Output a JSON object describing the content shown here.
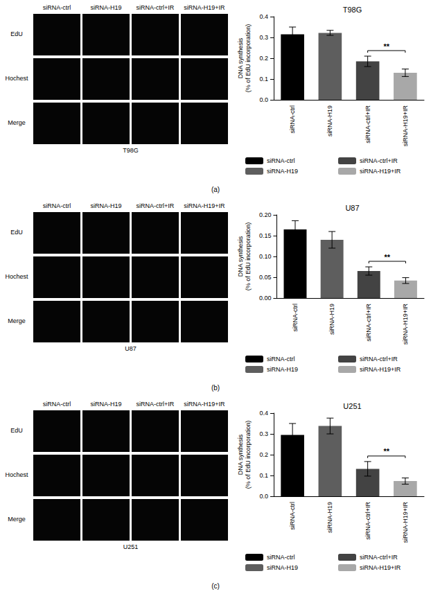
{
  "chart_data": [
    {
      "type": "bar",
      "title": "T98G",
      "ylabel": "DNA synthesis\n(% of EdU incorporation)",
      "categories": [
        "siRNA-ctrl",
        "siRNA-H19",
        "siRNA-ctrl+IR",
        "siRNA-H19+IR"
      ],
      "values": [
        0.315,
        0.322,
        0.185,
        0.13
      ],
      "errors": [
        0.035,
        0.012,
        0.025,
        0.018
      ],
      "colors": [
        "#000000",
        "#5e5e5e",
        "#434343",
        "#a8a8a8"
      ],
      "ylim": [
        0,
        0.4
      ],
      "yticks": [
        {
          "value": 0,
          "label": "0.0"
        },
        0.1,
        0.2,
        0.3,
        0.4
      ],
      "grid": false,
      "legend": "bottom",
      "annotations": [
        {
          "text": "**",
          "from": "siRNA-ctrl+IR",
          "to": "siRNA-H19+IR"
        }
      ]
    },
    {
      "type": "bar",
      "title": "U87",
      "ylabel": "DNA synthesis\n(% of EdU incorporation)",
      "categories": [
        "siRNA-ctrl",
        "siRNA-H19",
        "siRNA-ctrl+IR",
        "siRNA-H19+IR"
      ],
      "values": [
        0.165,
        0.14,
        0.065,
        0.042
      ],
      "errors": [
        0.021,
        0.02,
        0.01,
        0.007
      ],
      "colors": [
        "#000000",
        "#5e5e5e",
        "#434343",
        "#a8a8a8"
      ],
      "ylim": [
        0,
        0.2
      ],
      "yticks": [
        {
          "value": 0,
          "label": "0.00"
        },
        {
          "value": 0.05,
          "label": "0.05"
        },
        {
          "value": 0.1,
          "label": "0.10"
        },
        {
          "value": 0.15,
          "label": "0.15"
        },
        {
          "value": 0.2,
          "label": "0.20"
        }
      ],
      "grid": false,
      "legend": "bottom",
      "annotations": [
        {
          "text": "**",
          "from": "siRNA-ctrl+IR",
          "to": "siRNA-H19+IR"
        }
      ]
    },
    {
      "type": "bar",
      "title": "U251",
      "ylabel": "DNA synthesis\n(% of EdU incorporation)",
      "categories": [
        "siRNA-ctrl",
        "siRNA-H19",
        "siRNA-ctrl+IR",
        "siRNA-H19+IR"
      ],
      "values": [
        0.295,
        0.338,
        0.132,
        0.073
      ],
      "errors": [
        0.055,
        0.038,
        0.035,
        0.015
      ],
      "colors": [
        "#000000",
        "#5e5e5e",
        "#434343",
        "#a8a8a8"
      ],
      "ylim": [
        0,
        0.4
      ],
      "yticks": [
        {
          "value": 0,
          "label": "0.0"
        },
        0.1,
        0.2,
        0.3,
        0.4
      ],
      "grid": false,
      "legend": "bottom",
      "annotations": [
        {
          "text": "**",
          "from": "siRNA-ctrl+IR",
          "to": "siRNA-H19+IR"
        }
      ]
    }
  ],
  "image_panels": [
    {
      "label": "(a)",
      "cell_line": "T98G",
      "columns": [
        "siRNA-ctrl",
        "siRNA-H19",
        "siRNA-ctrl+IR",
        "siRNA-H19+IR"
      ],
      "rows": [
        "EdU",
        "Hochest",
        "Merge"
      ]
    },
    {
      "label": "(b)",
      "cell_line": "U87",
      "columns": [
        "siRNA-ctrl",
        "siRNA-H19",
        "siRNA-ctrl+IR",
        "siRNA-H19+IR"
      ],
      "rows": [
        "EdU",
        "Hochest",
        "Merge"
      ]
    },
    {
      "label": "(c)",
      "cell_line": "U251",
      "columns": [
        "siRNA-ctrl",
        "siRNA-H19",
        "siRNA-ctrl+IR",
        "siRNA-H19+IR"
      ],
      "rows": [
        "EdU",
        "Hochest",
        "Merge"
      ]
    }
  ]
}
